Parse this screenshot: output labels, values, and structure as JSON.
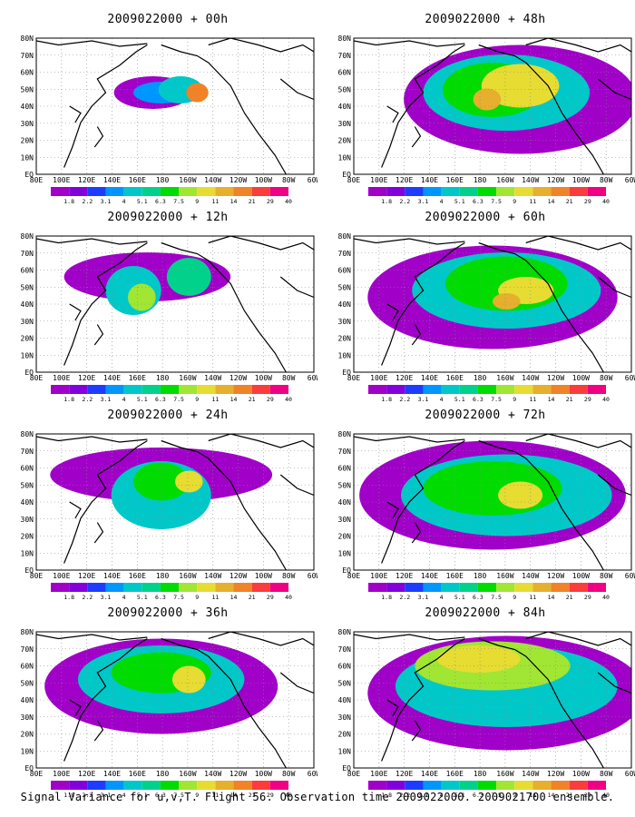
{
  "panels": [
    {
      "title": "2009022000 + 00h"
    },
    {
      "title": "2009022000 + 48h"
    },
    {
      "title": "2009022000 + 12h"
    },
    {
      "title": "2009022000 + 60h"
    },
    {
      "title": "2009022000 + 24h"
    },
    {
      "title": "2009022000 + 72h"
    },
    {
      "title": "2009022000 + 36h"
    },
    {
      "title": "2009022000 + 84h"
    }
  ],
  "latitude_labels": [
    "80N",
    "70N",
    "60N",
    "50N",
    "40N",
    "30N",
    "20N",
    "10N",
    "EQ"
  ],
  "longitude_labels": [
    "80E",
    "100E",
    "120E",
    "140E",
    "160E",
    "180",
    "160W",
    "140W",
    "120W",
    "100W",
    "80W",
    "60W"
  ],
  "colorbar": {
    "labels": [
      "1.8",
      "2.2",
      "3.1",
      "4",
      "5.1",
      "6.3",
      "7.5",
      "9",
      "11",
      "14",
      "21",
      "29",
      "40"
    ],
    "colors": [
      "#a000c8",
      "#8200dc",
      "#1e3cff",
      "#0096ff",
      "#00c8c8",
      "#00d28c",
      "#00dc00",
      "#a0e632",
      "#e6dc32",
      "#e6af2d",
      "#f08228",
      "#fa3c3c",
      "#f00082"
    ]
  },
  "footer": "Signal Variance for u,v,T. Flight 56. Observation time 2009022000. 2009021700 ensemble."
}
